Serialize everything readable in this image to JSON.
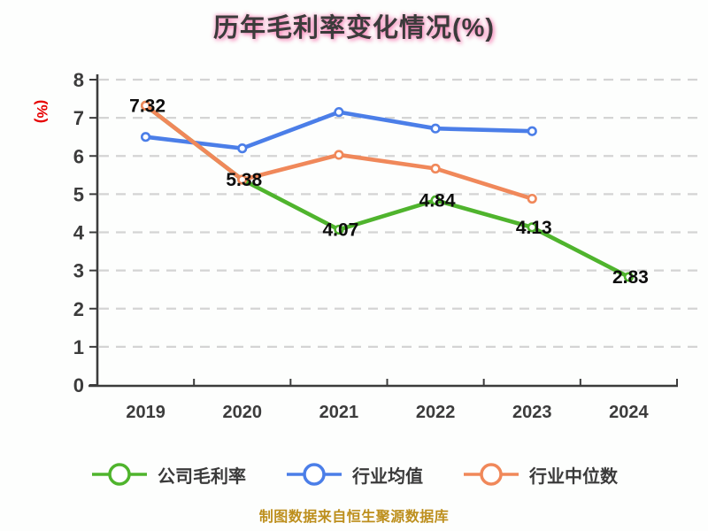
{
  "y_axis_unit_label": "(%)",
  "footer": {
    "note": "制图数据来自恒生聚源数据库"
  },
  "colors": {
    "axis": "#3c3c3c",
    "grid": "#d4d4d4",
    "data_label": "#0d0d0d",
    "unit_label": "#e60000",
    "footer": "#b8860b",
    "title": "#3b3b3b",
    "title_glow": "#f66fab",
    "marker_fill": "#ffffff"
  },
  "chart_data": {
    "type": "line",
    "title": "历年毛利率变化情况(%)",
    "categories": [
      "2019",
      "2020",
      "2021",
      "2022",
      "2023",
      "2024"
    ],
    "series": [
      {
        "name": "公司毛利率",
        "color": "#4fb42d",
        "values": [
          7.32,
          5.38,
          4.07,
          4.84,
          4.13,
          2.83
        ],
        "labels": [
          "7.32",
          "5.38",
          "4.07",
          "4.84",
          "4.13",
          "2.83"
        ]
      },
      {
        "name": "行业均值",
        "color": "#4b7ee8",
        "values": [
          6.5,
          6.2,
          7.15,
          6.72,
          6.65,
          null
        ],
        "labels": []
      },
      {
        "name": "行业中位数",
        "color": "#f0885a",
        "values": [
          7.32,
          5.38,
          6.03,
          5.67,
          4.88,
          null
        ],
        "labels": []
      }
    ],
    "ylim": [
      0,
      8
    ],
    "y_ticks": [
      0,
      1,
      2,
      3,
      4,
      5,
      6,
      7,
      8
    ],
    "grid": "dashed-horizontal",
    "legend_position": "bottom",
    "marker": "circle-white-fill"
  }
}
